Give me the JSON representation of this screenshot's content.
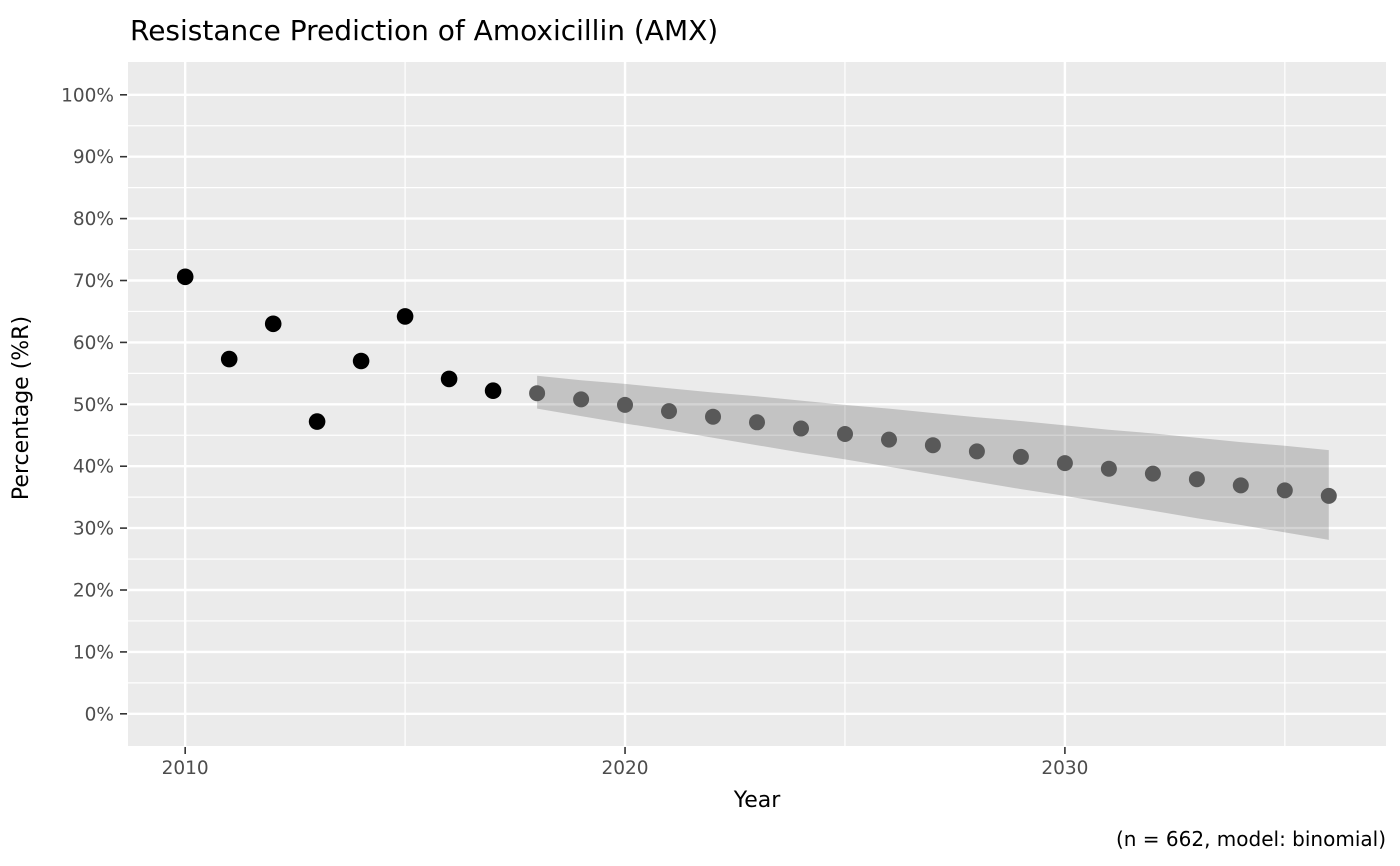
{
  "figure": {
    "title": "Resistance Prediction of Amoxicillin (AMX)",
    "caption": "(n = 662, model: binomial)"
  },
  "chart_data": {
    "type": "scatter",
    "title": "Resistance Prediction of Amoxicillin (AMX)",
    "xlabel": "Year",
    "ylabel": "Percentage (%R)",
    "caption": "(n = 662, model: binomial)",
    "legend": "none",
    "grid": true,
    "x_domain": [
      2008.7,
      2037.3
    ],
    "y_domain": [
      -5.2,
      105.3
    ],
    "x_ticks": {
      "major": [
        2010,
        2020,
        2030
      ],
      "minor": [
        2015,
        2025,
        2035
      ],
      "labels": [
        "2010",
        "2020",
        "2030"
      ]
    },
    "y_ticks": {
      "major": [
        0,
        10,
        20,
        30,
        40,
        50,
        60,
        70,
        80,
        90,
        100
      ],
      "minor": [
        5,
        15,
        25,
        35,
        45,
        55,
        65,
        75,
        85,
        95
      ],
      "labels": [
        "0%",
        "10%",
        "20%",
        "30%",
        "40%",
        "50%",
        "60%",
        "70%",
        "80%",
        "90%",
        "100%"
      ]
    },
    "series": [
      {
        "name": "observed",
        "type": "points",
        "color": "#000000",
        "point_radius": 8.3,
        "x": [
          2010,
          2011,
          2012,
          2013,
          2014,
          2015,
          2016,
          2017
        ],
        "y": [
          70.6,
          57.3,
          63.0,
          47.2,
          57.0,
          64.2,
          54.1,
          52.2
        ]
      },
      {
        "name": "predicted",
        "type": "points-with-ribbon",
        "color": "#595959",
        "ribbon_color": "rgba(0,0,0,0.17)",
        "point_radius": 8.0,
        "x": [
          2018,
          2019,
          2020,
          2021,
          2022,
          2023,
          2024,
          2025,
          2026,
          2027,
          2028,
          2029,
          2030,
          2031,
          2032,
          2033,
          2034,
          2035,
          2036
        ],
        "y": [
          51.8,
          50.8,
          49.9,
          48.9,
          48.0,
          47.1,
          46.1,
          45.2,
          44.3,
          43.4,
          42.4,
          41.5,
          40.5,
          39.6,
          38.8,
          37.9,
          36.9,
          36.1,
          35.2
        ],
        "ci_upper": [
          54.6,
          53.9,
          53.3,
          52.6,
          51.9,
          51.3,
          50.6,
          49.9,
          49.3,
          48.6,
          47.9,
          47.3,
          46.6,
          45.9,
          45.3,
          44.6,
          43.9,
          43.3,
          42.6
        ],
        "ci_lower": [
          49.3,
          48.1,
          46.9,
          45.8,
          44.6,
          43.4,
          42.2,
          41.1,
          39.9,
          38.7,
          37.5,
          36.3,
          35.2,
          34.0,
          32.8,
          31.6,
          30.5,
          29.3,
          28.1
        ]
      }
    ],
    "colors": {
      "panel_background": "#ebebeb",
      "gridline": "#ffffff",
      "tick_mark": "#333333",
      "tick_label": "#4d4d4d"
    }
  }
}
